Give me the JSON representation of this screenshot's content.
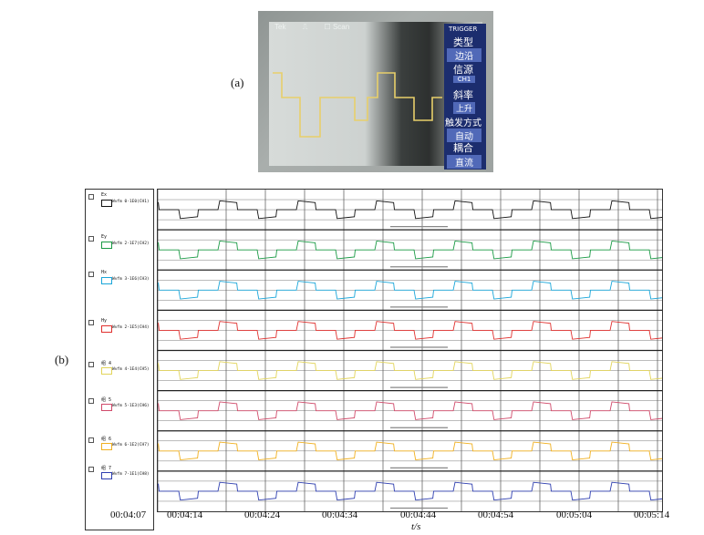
{
  "labels": {
    "a": "(a)",
    "b": "(b)"
  },
  "scope": {
    "header_left": "Tek",
    "header_mid": "Scan",
    "menu_title": "TRIGGER",
    "menu": [
      {
        "name": "类型",
        "value": "边沿"
      },
      {
        "name": "信源",
        "value": "CH1"
      },
      {
        "name": "斜率",
        "value": "上升"
      },
      {
        "name": "触发方式",
        "value": "自动"
      },
      {
        "name": "耦合",
        "value": "直流"
      }
    ],
    "trace_color": "#e8cf6a"
  },
  "channels": [
    {
      "name": "Ex",
      "desc": "Wvfm 0-1E0(CH1)",
      "color": "#111111"
    },
    {
      "name": "Ey",
      "desc": "Wvfm 2-1E7(CH2)",
      "color": "#1a9a45"
    },
    {
      "name": "Hx",
      "desc": "Wvfm 3-1E6(CH3)",
      "color": "#1aa6d9"
    },
    {
      "name": "Hy",
      "desc": "Wvfm 2-1E5(CH4)",
      "color": "#e0302e"
    },
    {
      "name": "组 4",
      "desc": "Wvfm 4-1E4(CH5)",
      "color": "#e2d45a"
    },
    {
      "name": "组 5",
      "desc": "Wvfm 5-1E3(CH6)",
      "color": "#d04a6a"
    },
    {
      "name": "组 6",
      "desc": "Wvfm 6-1E2(CH7)",
      "color": "#f0b020"
    },
    {
      "name": "组 7",
      "desc": "Wvfm 7-1E1(CH8)",
      "color": "#2f3fb0"
    }
  ],
  "axis": {
    "start_label": "00:04:07",
    "ticks": [
      "00:04:14",
      "00:04:24",
      "00:04:34",
      "00:04:44",
      "00:04:54",
      "00:05:04",
      "00:05:14"
    ],
    "xlabel": "t/s"
  }
}
